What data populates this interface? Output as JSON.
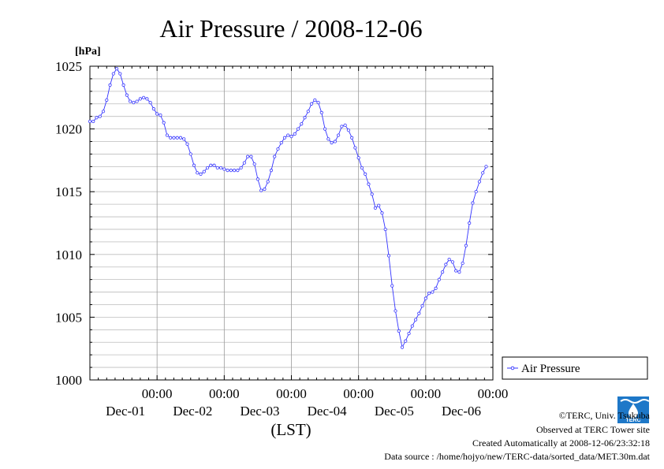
{
  "chart_data": {
    "type": "line",
    "title": "Air Pressure / 2008-12-06",
    "ylabel": "[hPa]",
    "xlabel": "(LST)",
    "ylim": [
      1000,
      1025
    ],
    "yticks": [
      1000,
      1005,
      1010,
      1015,
      1020,
      1025
    ],
    "x_range_days": [
      0,
      6
    ],
    "xticks": [
      {
        "day": 1,
        "time": "00:00",
        "date": "Dec-01"
      },
      {
        "day": 2,
        "time": "00:00",
        "date": "Dec-02"
      },
      {
        "day": 3,
        "time": "00:00",
        "date": "Dec-03"
      },
      {
        "day": 4,
        "time": "00:00",
        "date": "Dec-04"
      },
      {
        "day": 5,
        "time": "00:00",
        "date": "Dec-05"
      },
      {
        "day": 6,
        "time": "00:00",
        "date": "Dec-06"
      }
    ],
    "grid": true,
    "legend_position": "right",
    "series": [
      {
        "name": "Air Pressure",
        "color": "#3333ff",
        "points": [
          [
            0.0,
            1020.6
          ],
          [
            0.05,
            1020.6
          ],
          [
            0.1,
            1020.9
          ],
          [
            0.15,
            1021.0
          ],
          [
            0.2,
            1021.4
          ],
          [
            0.25,
            1022.3
          ],
          [
            0.3,
            1023.5
          ],
          [
            0.35,
            1024.4
          ],
          [
            0.4,
            1024.8
          ],
          [
            0.45,
            1024.4
          ],
          [
            0.5,
            1023.5
          ],
          [
            0.55,
            1022.7
          ],
          [
            0.6,
            1022.2
          ],
          [
            0.65,
            1022.1
          ],
          [
            0.7,
            1022.2
          ],
          [
            0.75,
            1022.4
          ],
          [
            0.8,
            1022.5
          ],
          [
            0.85,
            1022.4
          ],
          [
            0.9,
            1022.1
          ],
          [
            0.95,
            1021.6
          ],
          [
            1.0,
            1021.2
          ],
          [
            1.05,
            1021.1
          ],
          [
            1.1,
            1020.5
          ],
          [
            1.15,
            1019.5
          ],
          [
            1.2,
            1019.3
          ],
          [
            1.25,
            1019.3
          ],
          [
            1.3,
            1019.3
          ],
          [
            1.35,
            1019.3
          ],
          [
            1.4,
            1019.2
          ],
          [
            1.45,
            1018.8
          ],
          [
            1.5,
            1018.0
          ],
          [
            1.55,
            1017.1
          ],
          [
            1.6,
            1016.5
          ],
          [
            1.65,
            1016.4
          ],
          [
            1.7,
            1016.6
          ],
          [
            1.75,
            1016.9
          ],
          [
            1.8,
            1017.1
          ],
          [
            1.85,
            1017.1
          ],
          [
            1.9,
            1016.9
          ],
          [
            1.95,
            1016.9
          ],
          [
            2.0,
            1016.8
          ],
          [
            2.05,
            1016.7
          ],
          [
            2.1,
            1016.7
          ],
          [
            2.15,
            1016.7
          ],
          [
            2.2,
            1016.7
          ],
          [
            2.25,
            1016.9
          ],
          [
            2.3,
            1017.3
          ],
          [
            2.35,
            1017.8
          ],
          [
            2.4,
            1017.8
          ],
          [
            2.45,
            1017.2
          ],
          [
            2.5,
            1016.0
          ],
          [
            2.55,
            1015.1
          ],
          [
            2.6,
            1015.2
          ],
          [
            2.65,
            1015.8
          ],
          [
            2.7,
            1016.7
          ],
          [
            2.75,
            1017.8
          ],
          [
            2.8,
            1018.4
          ],
          [
            2.85,
            1018.9
          ],
          [
            2.9,
            1019.3
          ],
          [
            2.95,
            1019.5
          ],
          [
            3.0,
            1019.4
          ],
          [
            3.05,
            1019.6
          ],
          [
            3.1,
            1020.0
          ],
          [
            3.15,
            1020.4
          ],
          [
            3.2,
            1020.9
          ],
          [
            3.25,
            1021.4
          ],
          [
            3.3,
            1022.0
          ],
          [
            3.35,
            1022.3
          ],
          [
            3.4,
            1022.1
          ],
          [
            3.45,
            1021.3
          ],
          [
            3.5,
            1020.0
          ],
          [
            3.55,
            1019.2
          ],
          [
            3.6,
            1018.9
          ],
          [
            3.65,
            1019.0
          ],
          [
            3.7,
            1019.5
          ],
          [
            3.75,
            1020.2
          ],
          [
            3.8,
            1020.3
          ],
          [
            3.85,
            1019.9
          ],
          [
            3.9,
            1019.3
          ],
          [
            3.95,
            1018.5
          ],
          [
            4.0,
            1017.7
          ],
          [
            4.05,
            1016.9
          ],
          [
            4.1,
            1016.4
          ],
          [
            4.15,
            1015.6
          ],
          [
            4.2,
            1014.8
          ],
          [
            4.25,
            1013.7
          ],
          [
            4.3,
            1013.9
          ],
          [
            4.35,
            1013.3
          ],
          [
            4.4,
            1012.0
          ],
          [
            4.45,
            1009.9
          ],
          [
            4.5,
            1007.5
          ],
          [
            4.55,
            1005.5
          ],
          [
            4.6,
            1003.9
          ],
          [
            4.65,
            1002.6
          ],
          [
            4.7,
            1003.1
          ],
          [
            4.75,
            1003.7
          ],
          [
            4.8,
            1004.3
          ],
          [
            4.85,
            1004.8
          ],
          [
            4.9,
            1005.3
          ],
          [
            4.95,
            1005.9
          ],
          [
            5.0,
            1006.5
          ],
          [
            5.05,
            1006.9
          ],
          [
            5.1,
            1007.0
          ],
          [
            5.15,
            1007.3
          ],
          [
            5.2,
            1008.0
          ],
          [
            5.25,
            1008.6
          ],
          [
            5.3,
            1009.2
          ],
          [
            5.35,
            1009.6
          ],
          [
            5.4,
            1009.4
          ],
          [
            5.45,
            1008.7
          ],
          [
            5.5,
            1008.6
          ],
          [
            5.55,
            1009.3
          ],
          [
            5.6,
            1010.7
          ],
          [
            5.65,
            1012.5
          ],
          [
            5.7,
            1014.1
          ],
          [
            5.75,
            1015.0
          ],
          [
            5.8,
            1015.8
          ],
          [
            5.85,
            1016.5
          ],
          [
            5.9,
            1017.0
          ]
        ]
      }
    ]
  },
  "credits": {
    "copyright": "©TERC, Univ. Tsukuba",
    "observed": "Observed at TERC Tower site",
    "created": "Created Automatically at 2008-12-06/23:32:18",
    "source": "Data source : /home/hojyo/new/TERC-data/sorted_data/MET.30m.dat",
    "logo_text": "TERC"
  }
}
